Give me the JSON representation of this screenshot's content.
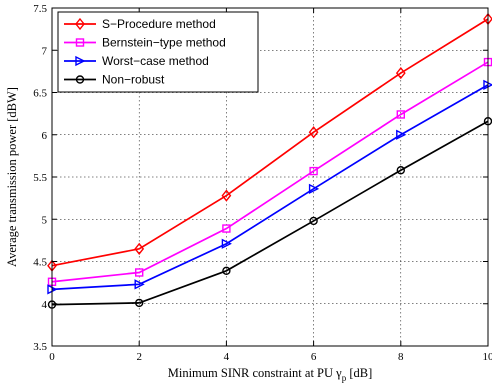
{
  "chart_data": {
    "type": "line",
    "x": [
      0,
      2,
      4,
      6,
      8,
      10
    ],
    "xlim": [
      0,
      10
    ],
    "ylim": [
      3.5,
      7.5
    ],
    "xticks": [
      "0",
      "2",
      "4",
      "6",
      "8",
      "10"
    ],
    "yticks": [
      "3.5",
      "4",
      "4.5",
      "5",
      "5.5",
      "6",
      "6.5",
      "7",
      "7.5"
    ],
    "xlabel_main": "Minimum SINR constraint at PU γ",
    "xlabel_sub": "p",
    "xlabel_unit": " [dB]",
    "ylabel": "Average transmission power [dBW]",
    "grid": true,
    "legend_position": "top-left",
    "series": [
      {
        "name": "S−Procedure method",
        "color": "#ff0000",
        "marker": "diamond",
        "values": [
          4.45,
          4.65,
          5.28,
          6.03,
          6.73,
          7.37
        ]
      },
      {
        "name": "Bernstein−type method",
        "color": "#ff00ff",
        "marker": "square",
        "values": [
          4.26,
          4.37,
          4.89,
          5.57,
          6.24,
          6.86
        ]
      },
      {
        "name": "Worst−case method",
        "color": "#0000ff",
        "marker": "triangle-right",
        "values": [
          4.17,
          4.23,
          4.71,
          5.36,
          6.0,
          6.59
        ]
      },
      {
        "name": "Non−robust",
        "color": "#000000",
        "marker": "circle",
        "values": [
          3.99,
          4.01,
          4.39,
          4.98,
          5.58,
          6.16
        ]
      }
    ]
  }
}
